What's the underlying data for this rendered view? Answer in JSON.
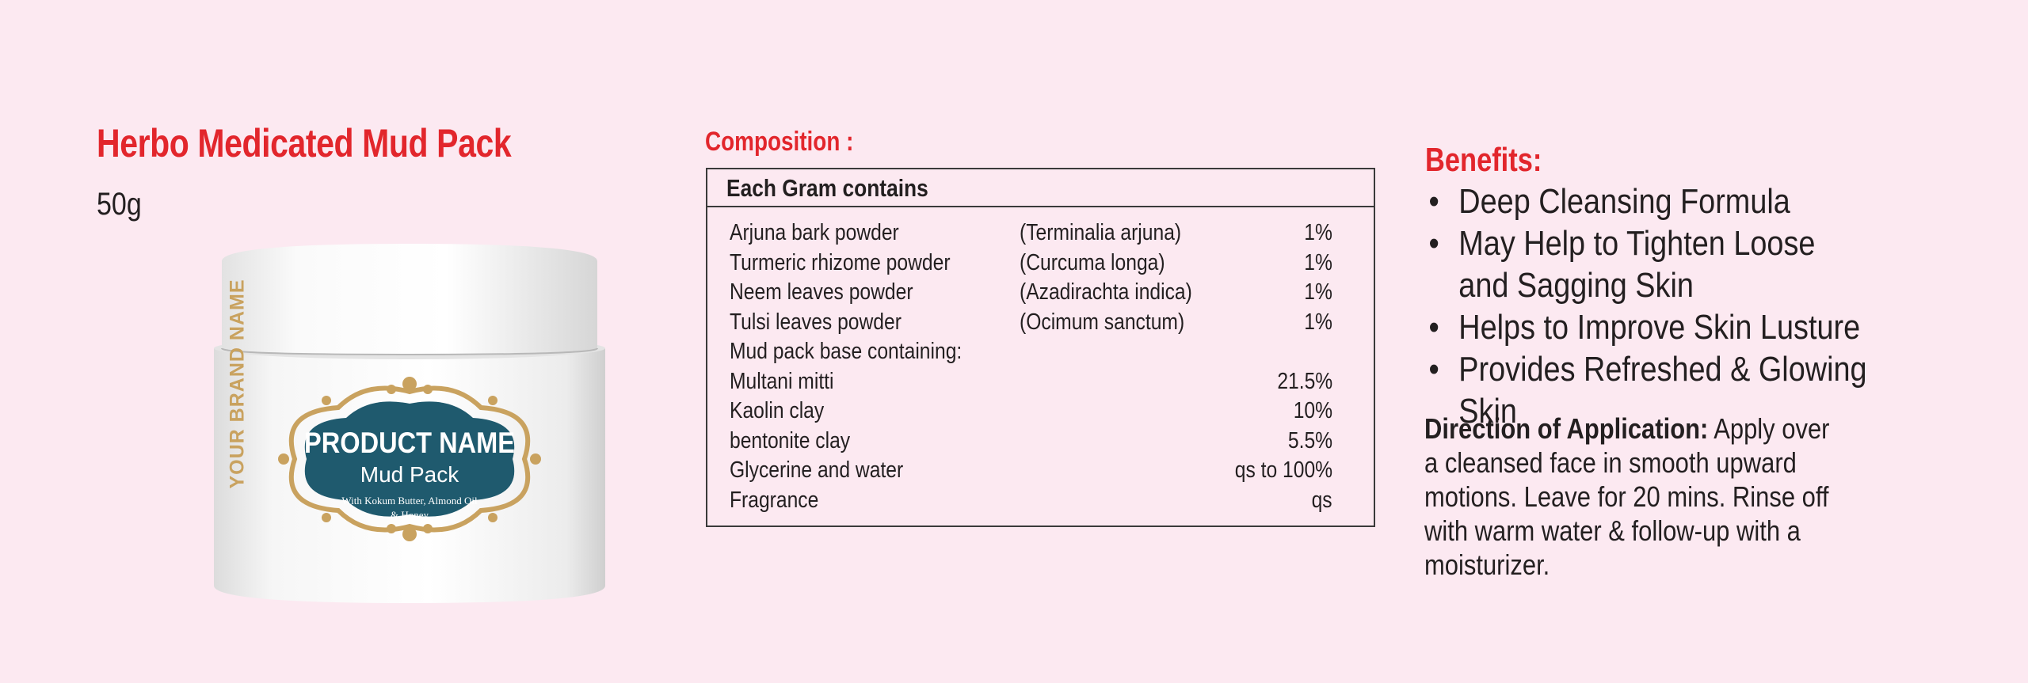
{
  "product": {
    "title": "Herbo Medicated Mud Pack",
    "weight": "50g"
  },
  "jar_label": {
    "brand": "YOUR BRAND NAME",
    "product_name": "PRODUCT NAME",
    "subtitle": "Mud Pack",
    "tagline_1": "With Kokum Butter, Almond Oil",
    "tagline_2": "& Honey"
  },
  "composition": {
    "heading": "Composition :",
    "table_header": "Each Gram contains",
    "rows": [
      {
        "name": "Arjuna bark powder",
        "latin": "(Terminalia arjuna)",
        "pct": "1%"
      },
      {
        "name": "Turmeric rhizome powder",
        "latin": "(Curcuma longa)",
        "pct": "1%"
      },
      {
        "name": "Neem leaves powder",
        "latin": "(Azadirachta indica)",
        "pct": "1%"
      },
      {
        "name": "Tulsi leaves powder",
        "latin": "(Ocimum sanctum)",
        "pct": "1%"
      },
      {
        "name": "Mud pack base containing:",
        "latin": "",
        "pct": ""
      },
      {
        "name": "Multani mitti",
        "latin": "",
        "pct": "21.5%"
      },
      {
        "name": "Kaolin clay",
        "latin": "",
        "pct": "10%"
      },
      {
        "name": "bentonite clay",
        "latin": "",
        "pct": "5.5%"
      },
      {
        "name": "Glycerine and water",
        "latin": "",
        "pct": "qs to 100%"
      },
      {
        "name": "Fragrance",
        "latin": "",
        "pct": "qs"
      }
    ]
  },
  "benefits": {
    "heading": "Benefits:",
    "bullet": "•",
    "items": [
      "Deep Cleansing Formula",
      "May Help to Tighten Loose and Sagging Skin",
      "Helps to Improve Skin Lusture",
      "Provides Refreshed & Glowing Skin"
    ]
  },
  "direction": {
    "label": "Direction of Application:",
    "text": " Apply over a cleansed face in smooth upward motions. Leave for 20 mins. Rinse off with warm water & follow-up with a moisturizer."
  },
  "colors": {
    "background": "#fce9f1",
    "accent_red": "#e2262c",
    "label_teal": "#1f5a6e",
    "label_gold": "#c9a25f"
  }
}
